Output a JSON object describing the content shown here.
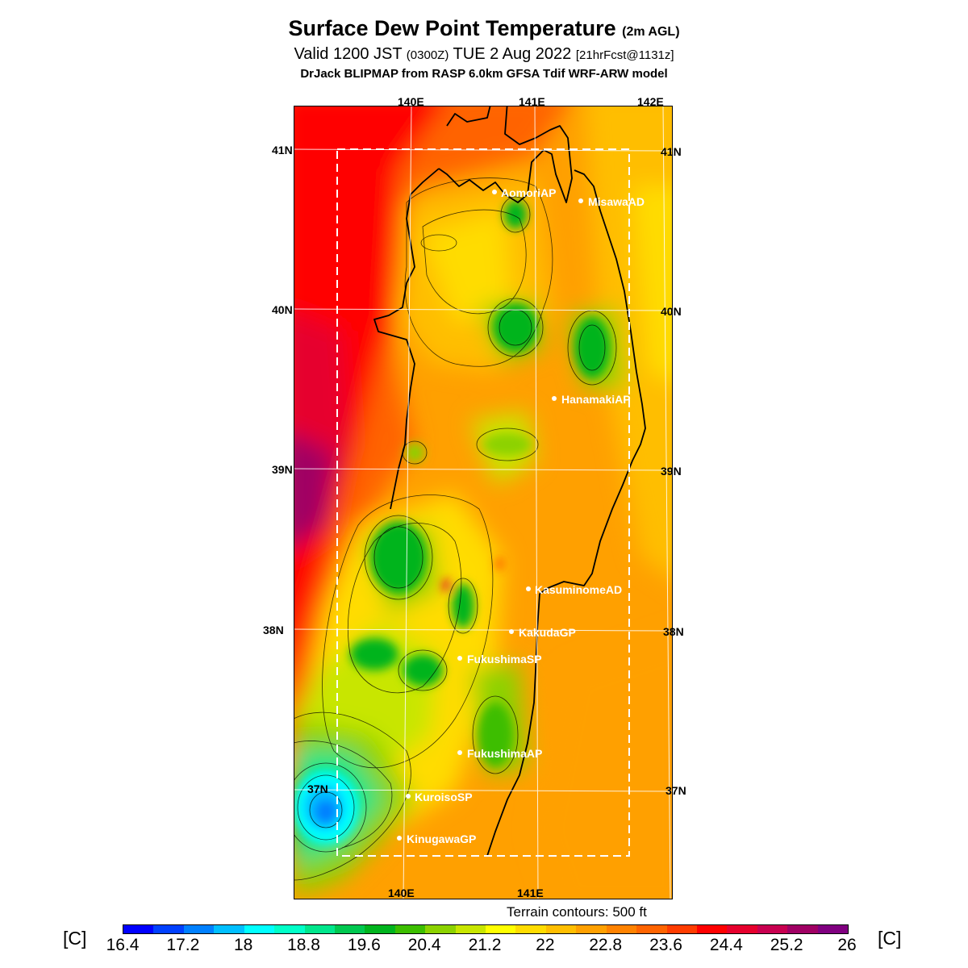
{
  "title": {
    "main": "Surface Dew Point Temperature",
    "main_suffix": "(2m AGL)",
    "valid": "Valid 1200 JST",
    "valid_z": "(0300Z)",
    "valid_date": "TUE 2 Aug 2022",
    "forecast": "[21hrFcst@1131z]",
    "model": "DrJack BLIPMAP from RASP 6.0km GFSA Tdif WRF-ARW model"
  },
  "axes": {
    "top_lon": [
      "140E",
      "141E",
      "142E"
    ],
    "bottom_lon": [
      "140E",
      "141E"
    ],
    "left_lat": [
      "41N",
      "40N",
      "39N",
      "38N",
      "37N"
    ],
    "right_lat": [
      "41N",
      "40N",
      "39N",
      "38N",
      "37N"
    ]
  },
  "stations": [
    {
      "name": "AomoriAP",
      "lon": 140.69,
      "lat": 40.73
    },
    {
      "name": "MisawaAD",
      "lon": 141.37,
      "lat": 40.68
    },
    {
      "name": "HanamakiAP",
      "lon": 141.13,
      "lat": 39.43
    },
    {
      "name": "KasuminomeAD",
      "lon": 140.92,
      "lat": 38.24
    },
    {
      "name": "KakudaGP",
      "lon": 140.78,
      "lat": 37.98
    },
    {
      "name": "FukushimaSP",
      "lon": 140.42,
      "lat": 37.82
    },
    {
      "name": "FukushimaAP",
      "lon": 140.42,
      "lat": 37.23
    },
    {
      "name": "KuroisoSP",
      "lon": 139.99,
      "lat": 36.96
    },
    {
      "name": "KinugawaGP",
      "lon": 139.92,
      "lat": 36.69
    }
  ],
  "terrain_note": "Terrain contours: 500 ft",
  "colorbar": {
    "unit": "[C]",
    "tick_labels": [
      "16.4",
      "17.2",
      "18",
      "18.8",
      "19.6",
      "20.4",
      "21.2",
      "22",
      "22.8",
      "23.6",
      "24.4",
      "25.2",
      "26"
    ],
    "colors": [
      "#0000ff",
      "#0040ff",
      "#0080ff",
      "#00bfff",
      "#00ffff",
      "#00ffc8",
      "#00e68c",
      "#00c850",
      "#00b41e",
      "#3cbe00",
      "#8cd200",
      "#c8e600",
      "#ffff00",
      "#ffdc00",
      "#ffbe00",
      "#ffa000",
      "#ff8200",
      "#ff6400",
      "#ff3c00",
      "#ff0000",
      "#e6002d",
      "#c80050",
      "#a00064",
      "#800080"
    ]
  },
  "colors": {
    "background": "#ffffff",
    "coast": "#000000",
    "gridline": "#ffffff"
  }
}
